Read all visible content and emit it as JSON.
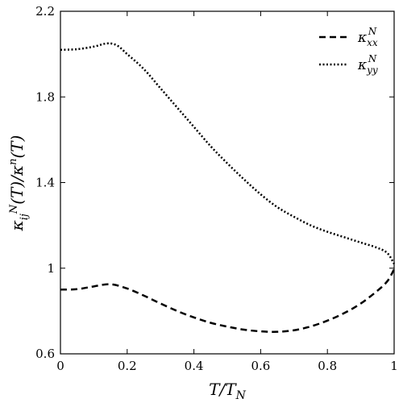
{
  "chart_data": {
    "type": "line",
    "xlabel": "T/T_N",
    "ylabel": "κ_ij^N(T)/κ^n(T)",
    "xlim": [
      0,
      1
    ],
    "ylim": [
      0.6,
      2.2
    ],
    "x_ticks": [
      0,
      0.2,
      0.4,
      0.6,
      0.8,
      1
    ],
    "x_tick_labels": [
      "0",
      "0.2",
      "0.4",
      "0.6",
      "0.8",
      "1"
    ],
    "y_ticks": [
      0.6,
      1.0,
      1.4,
      1.8,
      2.2
    ],
    "y_tick_labels": [
      "0.6",
      "1",
      "1.4",
      "1.8",
      "2.2"
    ],
    "grid": false,
    "legend_position": "top-right",
    "series": [
      {
        "name": "κ_xx^N",
        "style": "dashed",
        "color": "#000000",
        "points": [
          [
            0.0,
            0.9
          ],
          [
            0.05,
            0.902
          ],
          [
            0.1,
            0.915
          ],
          [
            0.15,
            0.925
          ],
          [
            0.2,
            0.905
          ],
          [
            0.25,
            0.872
          ],
          [
            0.3,
            0.835
          ],
          [
            0.35,
            0.8
          ],
          [
            0.4,
            0.77
          ],
          [
            0.45,
            0.745
          ],
          [
            0.5,
            0.727
          ],
          [
            0.55,
            0.713
          ],
          [
            0.6,
            0.705
          ],
          [
            0.65,
            0.703
          ],
          [
            0.7,
            0.71
          ],
          [
            0.75,
            0.728
          ],
          [
            0.8,
            0.755
          ],
          [
            0.85,
            0.79
          ],
          [
            0.9,
            0.835
          ],
          [
            0.95,
            0.895
          ],
          [
            0.98,
            0.94
          ],
          [
            1.0,
            0.995
          ]
        ]
      },
      {
        "name": "κ_yy^N",
        "style": "dotted",
        "color": "#000000",
        "points": [
          [
            0.0,
            2.02
          ],
          [
            0.05,
            2.023
          ],
          [
            0.1,
            2.035
          ],
          [
            0.14,
            2.05
          ],
          [
            0.17,
            2.04
          ],
          [
            0.2,
            2.0
          ],
          [
            0.25,
            1.93
          ],
          [
            0.3,
            1.84
          ],
          [
            0.35,
            1.75
          ],
          [
            0.4,
            1.66
          ],
          [
            0.45,
            1.57
          ],
          [
            0.5,
            1.49
          ],
          [
            0.55,
            1.415
          ],
          [
            0.6,
            1.345
          ],
          [
            0.65,
            1.285
          ],
          [
            0.7,
            1.24
          ],
          [
            0.75,
            1.2
          ],
          [
            0.8,
            1.17
          ],
          [
            0.85,
            1.145
          ],
          [
            0.9,
            1.12
          ],
          [
            0.95,
            1.095
          ],
          [
            0.98,
            1.07
          ],
          [
            1.0,
            1.02
          ]
        ]
      }
    ]
  }
}
